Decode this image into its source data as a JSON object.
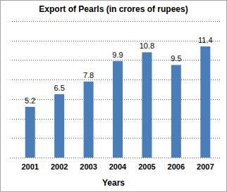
{
  "chart_data": {
    "type": "bar",
    "title": "Export of Pearls (in crores of rupees)",
    "x_label": "Years",
    "categories": [
      "2001",
      "2002",
      "2003",
      "2004",
      "2005",
      "2006",
      "2007"
    ],
    "values": [
      5.2,
      6.5,
      7.8,
      9.9,
      10.8,
      9.5,
      11.4
    ],
    "color": "#4a7ebb",
    "ylim": [
      0,
      14
    ],
    "yticks": [
      0,
      2,
      4,
      6,
      8,
      10,
      12,
      14
    ],
    "grid": true,
    "data_labels": true,
    "tick_labels": "x"
  }
}
